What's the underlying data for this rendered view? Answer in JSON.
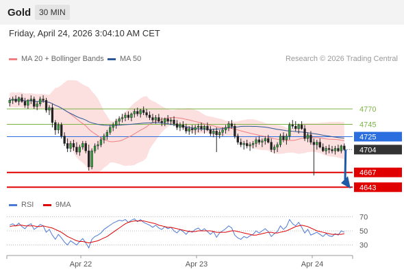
{
  "header": {
    "instrument": "Gold",
    "timeframe": "30 MIN"
  },
  "timestamp": "Friday, April 24, 2026 3:04:10 AM CET",
  "legend": {
    "ma20_bb": {
      "label": "MA 20 + Bollinger Bands",
      "color": "#f08080"
    },
    "ma50": {
      "label": "MA 50",
      "color": "#2b5797"
    },
    "rsi": {
      "label": "RSI",
      "color": "#4a78d6"
    },
    "rsi_ma": {
      "label": "9MA",
      "color": "#e00000"
    }
  },
  "credit": "Research © 2026 Trading Central",
  "chart_data": {
    "type": "candlestick",
    "x_labels": [
      "Apr 22",
      "Apr 23",
      "Apr 24"
    ],
    "price_levels": [
      {
        "value": 4770,
        "label": "4770",
        "kind": "resistance",
        "color": "#7cb342"
      },
      {
        "value": 4745,
        "label": "4745",
        "kind": "resistance",
        "color": "#7cb342"
      },
      {
        "value": 4725,
        "label": "4725",
        "kind": "pivot",
        "color": "#2a6ee0"
      },
      {
        "value": 4704,
        "label": "4704",
        "kind": "last",
        "color": "#333333"
      },
      {
        "value": 4667,
        "label": "4667",
        "kind": "target",
        "color": "#e00000"
      },
      {
        "value": 4643,
        "label": "4643",
        "kind": "target",
        "color": "#e00000"
      }
    ],
    "price_ylim": [
      4630,
      4830
    ],
    "candles": [
      [
        4780,
        4788,
        4774,
        4784
      ],
      [
        4784,
        4790,
        4778,
        4786
      ],
      [
        4786,
        4792,
        4780,
        4782
      ],
      [
        4782,
        4790,
        4776,
        4788
      ],
      [
        4788,
        4794,
        4780,
        4782
      ],
      [
        4782,
        4788,
        4772,
        4776
      ],
      [
        4776,
        4786,
        4770,
        4784
      ],
      [
        4784,
        4792,
        4778,
        4786
      ],
      [
        4786,
        4790,
        4770,
        4774
      ],
      [
        4774,
        4782,
        4768,
        4778
      ],
      [
        4778,
        4790,
        4774,
        4786
      ],
      [
        4786,
        4792,
        4780,
        4784
      ],
      [
        4784,
        4788,
        4764,
        4768
      ],
      [
        4768,
        4776,
        4760,
        4772
      ],
      [
        4772,
        4778,
        4740,
        4748
      ],
      [
        4748,
        4752,
        4728,
        4736
      ],
      [
        4736,
        4748,
        4730,
        4744
      ],
      [
        4744,
        4748,
        4722,
        4726
      ],
      [
        4726,
        4732,
        4710,
        4714
      ],
      [
        4714,
        4722,
        4700,
        4706
      ],
      [
        4706,
        4718,
        4700,
        4714
      ],
      [
        4714,
        4720,
        4702,
        4708
      ],
      [
        4708,
        4716,
        4696,
        4700
      ],
      [
        4700,
        4712,
        4694,
        4708
      ],
      [
        4708,
        4718,
        4704,
        4714
      ],
      [
        4714,
        4718,
        4698,
        4702
      ],
      [
        4702,
        4712,
        4670,
        4676
      ],
      [
        4676,
        4706,
        4672,
        4702
      ],
      [
        4702,
        4714,
        4698,
        4710
      ],
      [
        4710,
        4718,
        4704,
        4712
      ],
      [
        4712,
        4724,
        4708,
        4720
      ],
      [
        4720,
        4730,
        4714,
        4726
      ],
      [
        4726,
        4736,
        4720,
        4732
      ],
      [
        4732,
        4744,
        4728,
        4740
      ],
      [
        4740,
        4748,
        4734,
        4744
      ],
      [
        4744,
        4754,
        4738,
        4750
      ],
      [
        4750,
        4758,
        4744,
        4754
      ],
      [
        4754,
        4762,
        4748,
        4756
      ],
      [
        4756,
        4764,
        4750,
        4760
      ],
      [
        4760,
        4766,
        4752,
        4756
      ],
      [
        4756,
        4764,
        4750,
        4762
      ],
      [
        4762,
        4770,
        4756,
        4766
      ],
      [
        4766,
        4772,
        4758,
        4762
      ],
      [
        4762,
        4770,
        4756,
        4768
      ],
      [
        4768,
        4774,
        4760,
        4764
      ],
      [
        4764,
        4770,
        4756,
        4760
      ],
      [
        4760,
        4766,
        4752,
        4756
      ],
      [
        4756,
        4762,
        4748,
        4752
      ],
      [
        4752,
        4760,
        4746,
        4756
      ],
      [
        4756,
        4762,
        4748,
        4750
      ],
      [
        4750,
        4756,
        4742,
        4748
      ],
      [
        4748,
        4756,
        4742,
        4754
      ],
      [
        4754,
        4760,
        4746,
        4750
      ],
      [
        4750,
        4756,
        4744,
        4752
      ],
      [
        4752,
        4758,
        4742,
        4746
      ],
      [
        4746,
        4752,
        4736,
        4740
      ],
      [
        4740,
        4748,
        4734,
        4744
      ],
      [
        4744,
        4750,
        4736,
        4740
      ],
      [
        4740,
        4746,
        4730,
        4734
      ],
      [
        4734,
        4742,
        4728,
        4738
      ],
      [
        4738,
        4744,
        4730,
        4736
      ],
      [
        4736,
        4744,
        4728,
        4740
      ],
      [
        4740,
        4746,
        4732,
        4742
      ],
      [
        4742,
        4748,
        4734,
        4738
      ],
      [
        4738,
        4744,
        4730,
        4742
      ],
      [
        4742,
        4748,
        4734,
        4736
      ],
      [
        4736,
        4742,
        4726,
        4730
      ],
      [
        4730,
        4738,
        4724,
        4734
      ],
      [
        4734,
        4740,
        4700,
        4728
      ],
      [
        4728,
        4736,
        4722,
        4732
      ],
      [
        4732,
        4740,
        4726,
        4736
      ],
      [
        4736,
        4744,
        4730,
        4740
      ],
      [
        4740,
        4750,
        4734,
        4746
      ],
      [
        4746,
        4752,
        4738,
        4742
      ],
      [
        4742,
        4746,
        4722,
        4726
      ],
      [
        4726,
        4730,
        4712,
        4716
      ],
      [
        4716,
        4722,
        4708,
        4712
      ],
      [
        4712,
        4718,
        4704,
        4714
      ],
      [
        4714,
        4720,
        4706,
        4710
      ],
      [
        4710,
        4716,
        4702,
        4712
      ],
      [
        4712,
        4718,
        4706,
        4714
      ],
      [
        4714,
        4724,
        4708,
        4720
      ],
      [
        4720,
        4726,
        4712,
        4716
      ],
      [
        4716,
        4722,
        4708,
        4718
      ],
      [
        4718,
        4726,
        4712,
        4722
      ],
      [
        4722,
        4728,
        4714,
        4716
      ],
      [
        4716,
        4722,
        4700,
        4704
      ],
      [
        4704,
        4712,
        4698,
        4708
      ],
      [
        4708,
        4716,
        4700,
        4712
      ],
      [
        4712,
        4730,
        4708,
        4726
      ],
      [
        4726,
        4732,
        4716,
        4720
      ],
      [
        4720,
        4730,
        4712,
        4726
      ],
      [
        4726,
        4748,
        4720,
        4744
      ],
      [
        4744,
        4752,
        4738,
        4742
      ],
      [
        4742,
        4750,
        4734,
        4738
      ],
      [
        4738,
        4746,
        4730,
        4744
      ],
      [
        4744,
        4750,
        4736,
        4738
      ],
      [
        4738,
        4744,
        4718,
        4722
      ],
      [
        4722,
        4732,
        4716,
        4728
      ],
      [
        4728,
        4734,
        4712,
        4716
      ],
      [
        4716,
        4722,
        4662,
        4712
      ],
      [
        4712,
        4720,
        4704,
        4716
      ],
      [
        4716,
        4722,
        4706,
        4708
      ],
      [
        4708,
        4714,
        4700,
        4702
      ],
      [
        4702,
        4710,
        4696,
        4706
      ],
      [
        4706,
        4712,
        4698,
        4704
      ],
      [
        4704,
        4710,
        4698,
        4702
      ],
      [
        4702,
        4710,
        4696,
        4706
      ],
      [
        4706,
        4712,
        4700,
        4702
      ],
      [
        4702,
        4712,
        4698,
        4710
      ],
      [
        4710,
        4714,
        4702,
        4704
      ]
    ],
    "rsi_ylim": [
      20,
      80
    ],
    "rsi_ticks": [
      30,
      50,
      70
    ],
    "rsi_ref_lines": [
      30,
      50,
      70
    ],
    "rsi": [
      58,
      60,
      57,
      61,
      56,
      53,
      58,
      60,
      52,
      55,
      59,
      57,
      48,
      52,
      44,
      38,
      45,
      40,
      34,
      30,
      36,
      33,
      30,
      35,
      39,
      33,
      26,
      38,
      42,
      44,
      47,
      52,
      55,
      58,
      61,
      63,
      65,
      64,
      66,
      62,
      65,
      67,
      63,
      66,
      62,
      60,
      58,
      55,
      58,
      54,
      52,
      56,
      53,
      55,
      50,
      47,
      52,
      49,
      45,
      50,
      48,
      52,
      54,
      50,
      53,
      49,
      45,
      49,
      41,
      47,
      50,
      53,
      57,
      54,
      44,
      40,
      38,
      42,
      40,
      43,
      45,
      50,
      47,
      50,
      53,
      49,
      42,
      46,
      49,
      57,
      52,
      56,
      66,
      60,
      57,
      62,
      55,
      47,
      52,
      44,
      46,
      48,
      45,
      42,
      46,
      43,
      42,
      46,
      44,
      50,
      48
    ],
    "rsi_ma": [
      56,
      57,
      57,
      58,
      58,
      57,
      57,
      57,
      57,
      56,
      56,
      57,
      56,
      55,
      54,
      52,
      50,
      48,
      45,
      42,
      40,
      38,
      36,
      35,
      35,
      34,
      33,
      34,
      35,
      36,
      38,
      40,
      42,
      45,
      48,
      51,
      54,
      57,
      60,
      62,
      63,
      64,
      64,
      64,
      64,
      63,
      62,
      61,
      60,
      58,
      57,
      56,
      55,
      55,
      54,
      53,
      52,
      51,
      50,
      49,
      49,
      49,
      50,
      50,
      50,
      50,
      50,
      49,
      48,
      48,
      48,
      48,
      49,
      50,
      50,
      49,
      48,
      47,
      46,
      45,
      44,
      44,
      45,
      46,
      47,
      48,
      48,
      47,
      47,
      48,
      49,
      50,
      52,
      54,
      56,
      57,
      58,
      57,
      56,
      54,
      52,
      50,
      49,
      48,
      47,
      46,
      45,
      45,
      45,
      45,
      46
    ]
  }
}
